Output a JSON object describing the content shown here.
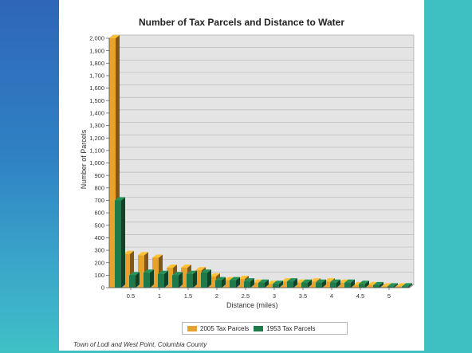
{
  "chart_data": {
    "type": "bar",
    "title": "Number of Tax Parcels and Distance to Water",
    "xlabel": "Distance (miles)",
    "ylabel": "Number of Parcels",
    "ylim": [
      0,
      2000
    ],
    "y_ticks": [
      0,
      100,
      200,
      300,
      400,
      500,
      600,
      700,
      800,
      900,
      1000,
      1100,
      1200,
      1300,
      1400,
      1500,
      1600,
      1700,
      1800,
      1900,
      2000
    ],
    "y_tick_labels": [
      "0",
      "100",
      "200",
      "300",
      "400",
      "500",
      "600",
      "700",
      "800",
      "900",
      "1,000",
      "1,100",
      "1,200",
      "1,300",
      "1,400",
      "1,500",
      "1,600",
      "1,700",
      "1,800",
      "1,900",
      "2,000"
    ],
    "x_tick_labels": [
      "0.5",
      "1",
      "1.5",
      "2",
      "2.5",
      "3",
      "3.5",
      "4",
      "4.5",
      "5"
    ],
    "categories": [
      0.25,
      0.5,
      0.75,
      1,
      1.25,
      1.5,
      1.75,
      2,
      2.25,
      2.5,
      2.75,
      3,
      3.25,
      3.5,
      3.75,
      4,
      4.25,
      4.5,
      4.75,
      5,
      5.25
    ],
    "series": [
      {
        "name": "2005 Tax Parcels",
        "color": "#e8a22b",
        "values": [
          2000,
          270,
          260,
          240,
          160,
          160,
          140,
          90,
          60,
          70,
          40,
          30,
          50,
          40,
          50,
          50,
          40,
          20,
          20,
          10,
          10
        ]
      },
      {
        "name": "1953 Tax Parcels",
        "color": "#1f7a4a",
        "values": [
          700,
          100,
          120,
          110,
          100,
          110,
          120,
          60,
          60,
          50,
          40,
          30,
          50,
          40,
          40,
          40,
          40,
          30,
          20,
          10,
          10
        ]
      }
    ],
    "grid": true,
    "legend_position": "bottom"
  },
  "caption": "Town of Lodi and West Point, Columbia County"
}
